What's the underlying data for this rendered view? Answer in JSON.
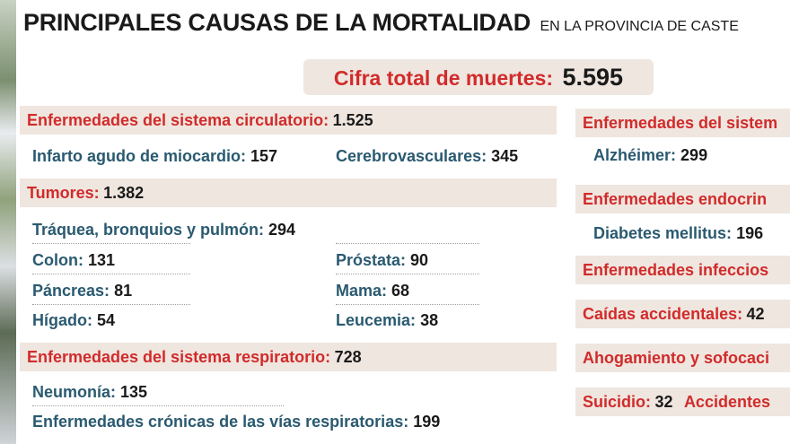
{
  "header": {
    "title": "PRINCIPALES CAUSAS DE LA MORTALIDAD",
    "subtitle": "EN LA PROVINCIA DE CASTE"
  },
  "total": {
    "label": "Cifra total de muertes:",
    "value": "5.595"
  },
  "left": {
    "circulatorio": {
      "label": "Enfermedades del sistema circulatorio:",
      "value": "1.525",
      "items": [
        {
          "label": "Infarto agudo de miocardio:",
          "value": "157"
        },
        {
          "label": "Cerebrovasculares:",
          "value": "345"
        }
      ]
    },
    "tumores": {
      "label": "Tumores:",
      "value": "1.382",
      "items": [
        {
          "label": "Tráquea, bronquios y pulmón:",
          "value": "294"
        },
        {
          "label": "Colon:",
          "value": "131"
        },
        {
          "label": "Próstata:",
          "value": "90"
        },
        {
          "label": "Páncreas:",
          "value": "81"
        },
        {
          "label": "Mama:",
          "value": "68"
        },
        {
          "label": "Hígado:",
          "value": "54"
        },
        {
          "label": "Leucemia:",
          "value": "38"
        }
      ]
    },
    "respiratorio": {
      "label": "Enfermedades del sistema respiratorio:",
      "value": "728",
      "items": [
        {
          "label": "Neumonía:",
          "value": "135"
        },
        {
          "label": "Enfermedades crónicas de las vías respiratorias:",
          "value": "199"
        }
      ]
    }
  },
  "right": {
    "nervioso": {
      "label": "Enfermedades del sistem",
      "items": [
        {
          "label": "Alzhéimer:",
          "value": "299"
        }
      ]
    },
    "endocrinas": {
      "label": "Enfermedades endocrin",
      "items": [
        {
          "label": "Diabetes mellitus:",
          "value": "196"
        }
      ]
    },
    "infecciosas": {
      "label": "Enfermedades infeccios"
    },
    "caidas": {
      "label": "Caídas accidentales:",
      "value": "42"
    },
    "ahogamiento": {
      "label": "Ahogamiento y sofocaci"
    },
    "suicidio": {
      "label": "Suicidio:",
      "value": "32",
      "extra": "Accidentes"
    }
  },
  "chart_data": {
    "type": "table",
    "title": "PRINCIPALES CAUSAS DE LA MORTALIDAD",
    "subtitle": "EN LA PROVINCIA DE CASTE",
    "total": 5595,
    "categories": [
      {
        "name": "Enfermedades del sistema circulatorio",
        "value": 1525,
        "items": [
          {
            "name": "Infarto agudo de miocardio",
            "value": 157
          },
          {
            "name": "Cerebrovasculares",
            "value": 345
          }
        ]
      },
      {
        "name": "Tumores",
        "value": 1382,
        "items": [
          {
            "name": "Tráquea, bronquios y pulmón",
            "value": 294
          },
          {
            "name": "Colon",
            "value": 131
          },
          {
            "name": "Próstata",
            "value": 90
          },
          {
            "name": "Páncreas",
            "value": 81
          },
          {
            "name": "Mama",
            "value": 68
          },
          {
            "name": "Hígado",
            "value": 54
          },
          {
            "name": "Leucemia",
            "value": 38
          }
        ]
      },
      {
        "name": "Enfermedades del sistema respiratorio",
        "value": 728,
        "items": [
          {
            "name": "Neumonía",
            "value": 135
          },
          {
            "name": "Enfermedades crónicas de las vías respiratorias",
            "value": 199
          }
        ]
      },
      {
        "name": "Enfermedades del sistem",
        "items": [
          {
            "name": "Alzhéimer",
            "value": 299
          }
        ]
      },
      {
        "name": "Enfermedades endocrin",
        "items": [
          {
            "name": "Diabetes mellitus",
            "value": 196
          }
        ]
      },
      {
        "name": "Enfermedades infeccios"
      },
      {
        "name": "Caídas accidentales",
        "value": 42
      },
      {
        "name": "Ahogamiento y sofocaci"
      },
      {
        "name": "Suicidio",
        "value": 32
      },
      {
        "name": "Accidentes"
      }
    ]
  }
}
